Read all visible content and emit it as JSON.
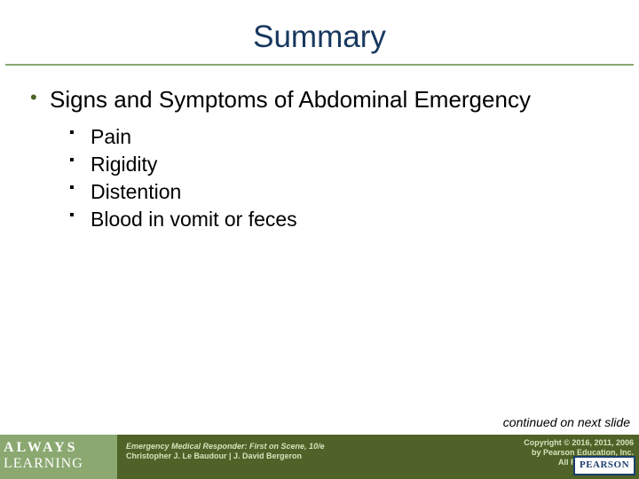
{
  "title": "Summary",
  "title_color": "#17375e",
  "rule_color": "#8aa870",
  "bullets": {
    "level1_marker_color": "#4f6228",
    "level2_marker_color": "#000000",
    "items": [
      {
        "text": "Signs and Symptoms of Abdominal Emergency",
        "sub": [
          "Pain",
          "Rigidity",
          "Distention",
          "Blood in vomit or feces"
        ]
      }
    ]
  },
  "continued_text": "continued on next slide",
  "footer": {
    "left_bg": "#8aa870",
    "mid_bg": "#4f6228",
    "text_color": "#d7e3bc",
    "always": "ALWAYS",
    "learning": "LEARNING",
    "book_line": "Emergency Medical Responder: First on Scene, 10/e",
    "authors_line": "Christopher J. Le Baudour | J. David Bergeron",
    "copyright_line1": "Copyright © 2016, 2011, 2006",
    "copyright_line2": "by Pearson Education, Inc.",
    "copyright_line3": "All Rights Reserved",
    "pearson": "PEARSON"
  }
}
